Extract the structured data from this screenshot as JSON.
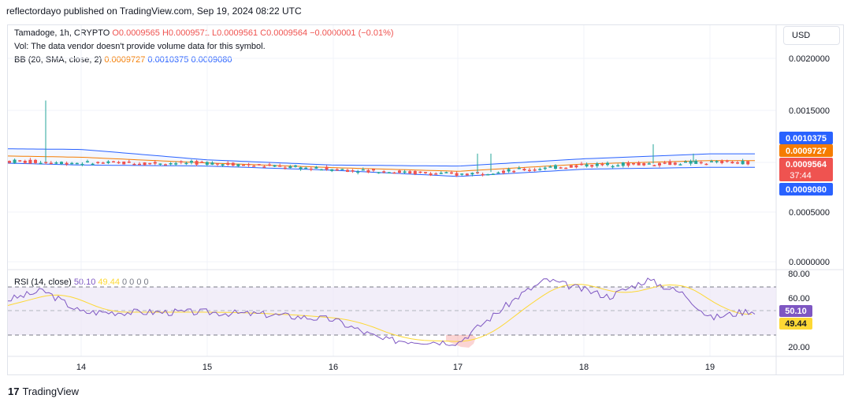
{
  "publisher_line": "reflectordayo published on TradingView.com, Sep 19, 2024 08:22 UTC",
  "legend": {
    "symbol": "Tamadoge, 1h, CRYPTO",
    "ohlc_text": "O0.0009565 H0.0009571 L0.0009561 C0.0009564 −0.0000001 (−0.01%)",
    "vol_text": "Vol: The data vendor doesn't provide volume data for this symbol.",
    "bb_label": "BB (20, SMA, close, 2)",
    "bb_basis": "0.0009727",
    "bb_upper": "0.0010375",
    "bb_lower": "0.0009080",
    "rsi_label": "RSI (14, close)",
    "rsi_value": "50.10",
    "rsi_ma": "49.44",
    "rsi_zeros": "0 0 0 0"
  },
  "currency_button": "USD",
  "price_axis_labels": [
    "0.0020000",
    "0.0015000",
    "0.0005000",
    "0.0000000"
  ],
  "price_tags": {
    "bb_upper": "0.0010375",
    "bb_basis": "0.0009727",
    "last_price": "0.0009564",
    "countdown": "37:44",
    "bb_lower": "0.0009080"
  },
  "rsi_axis_labels": [
    "80.00",
    "60.00",
    "20.00"
  ],
  "rsi_tags": {
    "rsi": "50.10",
    "rsi_ma": "49.44"
  },
  "time_labels": [
    "14",
    "15",
    "16",
    "17",
    "18",
    "19"
  ],
  "footer_brand": "TradingView",
  "colors": {
    "up": "#26a69a",
    "down": "#ef5350",
    "bb_band": "#2962ff",
    "bb_basis": "#f57c00",
    "rsi": "#7e57c2",
    "rsi_ma": "#fdd835",
    "rsi_bg": "#ede7f6",
    "grid": "#f0f3fa"
  },
  "chart_data": {
    "type": "candlestick",
    "price_ylim": [
      0.0,
      0.0021
    ],
    "rsi_ylim": [
      10,
      85
    ],
    "rsi_bands": [
      70,
      50,
      30
    ],
    "x_ticks": [
      "14",
      "15",
      "16",
      "17",
      "18",
      "19"
    ],
    "price_series_approx": [
      {
        "x": "13",
        "close": 0.00098
      },
      {
        "x": "14",
        "close": 0.00095
      },
      {
        "x": "15",
        "close": 0.00095
      },
      {
        "x": "16",
        "close": 0.00089
      },
      {
        "x": "17",
        "close": 0.00084
      },
      {
        "x": "18",
        "close": 0.00093
      },
      {
        "x": "19",
        "close": 0.0009564
      }
    ],
    "price_spike_highs": [
      0.00155,
      0.00104,
      0.00104,
      0.00113,
      0.00104
    ],
    "bb_upper_approx": [
      {
        "x": "13",
        "v": 0.00109
      },
      {
        "x": "14",
        "v": 0.00108
      },
      {
        "x": "15",
        "v": 0.00098
      },
      {
        "x": "16",
        "v": 0.00093
      },
      {
        "x": "17",
        "v": 0.00092
      },
      {
        "x": "18",
        "v": 0.00099
      },
      {
        "x": "19",
        "v": 0.0010375
      }
    ],
    "bb_lower_approx": [
      {
        "x": "13",
        "v": 0.00096
      },
      {
        "x": "14",
        "v": 0.00093
      },
      {
        "x": "15",
        "v": 0.00092
      },
      {
        "x": "16",
        "v": 0.00088
      },
      {
        "x": "17",
        "v": 0.00082
      },
      {
        "x": "18",
        "v": 0.00089
      },
      {
        "x": "19",
        "v": 0.000908
      }
    ],
    "rsi_series_approx": [
      {
        "x": "13",
        "v": 48
      },
      {
        "x": "13.7",
        "v": 67
      },
      {
        "x": "14",
        "v": 49
      },
      {
        "x": "15",
        "v": 49
      },
      {
        "x": "15.5",
        "v": 47
      },
      {
        "x": "16",
        "v": 43
      },
      {
        "x": "16.4",
        "v": 26
      },
      {
        "x": "17",
        "v": 24
      },
      {
        "x": "17.5",
        "v": 64
      },
      {
        "x": "17.7",
        "v": 76
      },
      {
        "x": "18.2",
        "v": 62
      },
      {
        "x": "18.5",
        "v": 76
      },
      {
        "x": "18.8",
        "v": 64
      },
      {
        "x": "19",
        "v": 44
      },
      {
        "x": "19.3",
        "v": 50.1
      }
    ],
    "rsi_ma_value": 49.44
  }
}
